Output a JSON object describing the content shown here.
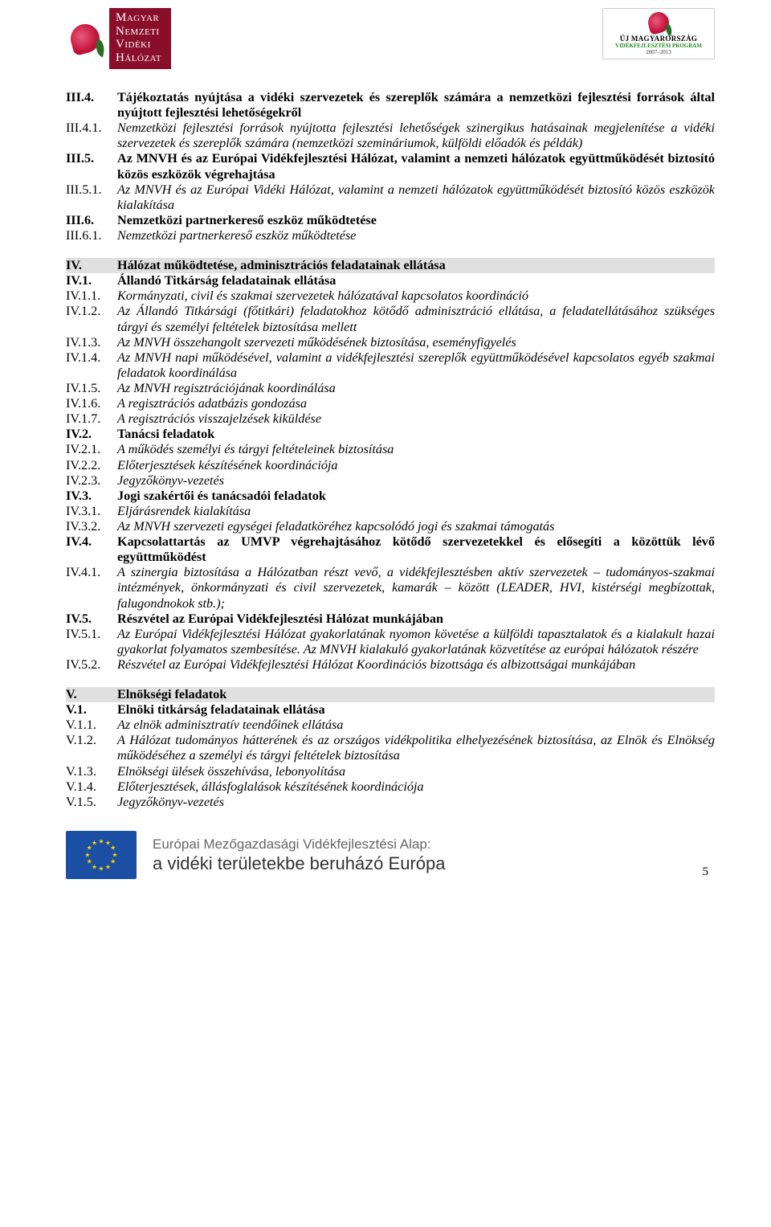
{
  "header": {
    "logo_left": {
      "line1": "Magyar",
      "line2": "Nemzeti",
      "line3": "Vidéki",
      "line4": "Hálózat"
    },
    "logo_right": {
      "title": "ÚJ MAGYARORSZÁG",
      "program": "VIDÉKFEJLESZTÉSI PROGRAM",
      "years": "2007–2013"
    }
  },
  "items": [
    {
      "num": "III.4.",
      "text": "Tájékoztatás nyújtása a vidéki szervezetek és szereplők számára a nemzetközi fejlesztési források által nyújtott fejlesztési lehetőségekről",
      "cls": "bold"
    },
    {
      "num": "III.4.1.",
      "text": "Nemzetközi fejlesztési források nyújtotta fejlesztési lehetőségek szinergikus hatásainak megjelenítése a vidéki szervezetek és szereplők számára (nemzetközi szemináriumok, külföldi előadók és példák)",
      "cls": "italic"
    },
    {
      "num": "III.5.",
      "text": "Az MNVH és az Európai Vidékfejlesztési Hálózat, valamint a nemzeti hálózatok együttműködését biztosító közös eszközök végrehajtása",
      "cls": "bold"
    },
    {
      "num": "III.5.1.",
      "text": "Az MNVH és az Európai Vidéki Hálózat, valamint a nemzeti hálózatok együttműködését biztosító közös eszközök kialakítása",
      "cls": "italic"
    },
    {
      "num": "III.6.",
      "text": "Nemzetközi partnerkereső eszköz működtetése",
      "cls": "bold"
    },
    {
      "num": "III.6.1.",
      "text": "Nemzetközi partnerkereső eszköz működtetése",
      "cls": "italic"
    }
  ],
  "section_iv": {
    "num": "IV.",
    "text": "Hálózat működtetése, adminisztrációs feladatainak ellátása"
  },
  "items_iv": [
    {
      "num": "IV.1.",
      "text": "Állandó Titkárság feladatainak ellátása",
      "cls": "bold"
    },
    {
      "num": "IV.1.1.",
      "text": "Kormányzati, civil és szakmai szervezetek hálózatával kapcsolatos koordináció",
      "cls": "italic"
    },
    {
      "num": "IV.1.2.",
      "text": "Az Állandó Titkársági (főtitkári) feladatokhoz kötődő adminisztráció ellátása, a feladatellátásához szükséges tárgyi és személyi feltételek biztosítása mellett",
      "cls": "italic"
    },
    {
      "num": "IV.1.3.",
      "text": "Az MNVH összehangolt szervezeti működésének biztosítása, eseményfigyelés",
      "cls": "italic"
    },
    {
      "num": "IV.1.4.",
      "text": "Az MNVH napi működésével, valamint a vidékfejlesztési szereplők együttműködésével kapcsolatos egyéb szakmai feladatok koordinálása",
      "cls": "italic"
    },
    {
      "num": "IV.1.5.",
      "text": "Az MNVH regisztrációjának koordinálása",
      "cls": "italic"
    },
    {
      "num": "IV.1.6.",
      "text": "A regisztrációs adatbázis gondozása",
      "cls": "italic"
    },
    {
      "num": "IV.1.7.",
      "text": "A regisztrációs visszajelzések kiküldése",
      "cls": "italic"
    },
    {
      "num": "IV.2.",
      "text": "Tanácsi feladatok",
      "cls": "bold"
    },
    {
      "num": "IV.2.1.",
      "text": "A működés személyi és tárgyi feltételeinek biztosítása",
      "cls": "italic"
    },
    {
      "num": "IV.2.2.",
      "text": "Előterjesztések készítésének koordinációja",
      "cls": "italic"
    },
    {
      "num": "IV.2.3.",
      "text": "Jegyzőkönyv-vezetés",
      "cls": "italic"
    },
    {
      "num": "IV.3.",
      "text": "Jogi szakértői és tanácsadói feladatok",
      "cls": "bold"
    },
    {
      "num": "IV.3.1.",
      "text": "Eljárásrendek kialakítása",
      "cls": "italic"
    },
    {
      "num": "IV.3.2.",
      "text": "Az MNVH szervezeti egységei feladatköréhez kapcsolódó jogi és szakmai támogatás",
      "cls": "italic"
    },
    {
      "num": "IV.4.",
      "text": "Kapcsolattartás az UMVP végrehajtásához kötődő szervezetekkel és elősegíti a közöttük lévő együttműködést",
      "cls": "bold"
    },
    {
      "num": "IV.4.1.",
      "text": "A szinergia biztosítása a Hálózatban részt vevő, a vidékfejlesztésben aktív szervezetek – tudományos-szakmai intézmények, önkormányzati és civil szervezetek, kamarák – között (LEADER, HVI, kistérségi megbízottak, falugondnokok stb.);",
      "cls": "italic"
    },
    {
      "num": "IV.5.",
      "text": "Részvétel az Európai Vidékfejlesztési Hálózat munkájában",
      "cls": "bold"
    },
    {
      "num": "IV.5.1.",
      "text": "Az Európai Vidékfejlesztési Hálózat gyakorlatának nyomon követése a külföldi tapasztalatok és a kialakult hazai gyakorlat folyamatos szembesítése. Az MNVH kialakuló gyakorlatának közvetítése az európai hálózatok részére",
      "cls": "italic"
    },
    {
      "num": "IV.5.2.",
      "text": "Részvétel az Európai Vidékfejlesztési Hálózat Koordinációs bizottsága és albizottságai munkájában",
      "cls": "italic"
    }
  ],
  "section_v": {
    "num": "V.",
    "text": "Elnökségi feladatok"
  },
  "items_v": [
    {
      "num": "V.1.",
      "text": "Elnöki titkárság feladatainak ellátása",
      "cls": "bold"
    },
    {
      "num": "V.1.1.",
      "text": "Az elnök adminisztratív teendőinek ellátása",
      "cls": "italic"
    },
    {
      "num": "V.1.2.",
      "text": "A Hálózat tudományos hátterének és az országos vidékpolitika elhelyezésének biztosítása, az Elnök és Elnökség működéséhez a személyi és tárgyi feltételek biztosítása",
      "cls": "italic"
    },
    {
      "num": "V.1.3.",
      "text": "Elnökségi ülések összehívása, lebonyolítása",
      "cls": "italic"
    },
    {
      "num": "V.1.4.",
      "text": "Előterjesztések, állásfoglalások készítésének koordinációja",
      "cls": "italic"
    },
    {
      "num": "V.1.5.",
      "text": "Jegyzőkönyv-vezetés",
      "cls": "italic"
    }
  ],
  "footer": {
    "line1": "Európai Mezőgazdasági Vidékfejlesztési Alap:",
    "line2": "a vidéki területekbe beruházó Európa",
    "page_number": "5"
  }
}
